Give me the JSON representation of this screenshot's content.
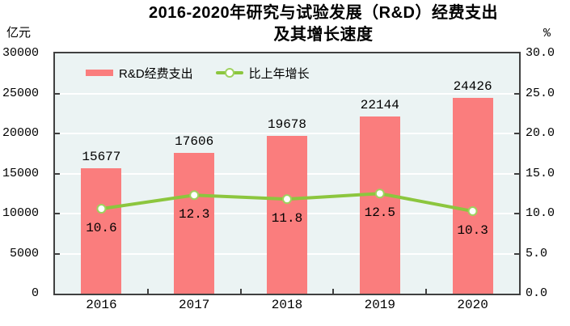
{
  "title": {
    "line1": "2016-2020年研究与试验发展（R&D）经费支出",
    "line2": "及其增长速度"
  },
  "chart_data": {
    "type": "bar+line",
    "title": "2016-2020年研究与试验发展（R&D）经费支出及其增长速度",
    "categories": [
      "2016",
      "2017",
      "2018",
      "2019",
      "2020"
    ],
    "series": [
      {
        "name": "R&D经费支出",
        "type": "bar",
        "axis": "left",
        "values": [
          15677,
          17606,
          19678,
          22144,
          24426
        ],
        "labels": [
          "15677",
          "17606",
          "19678",
          "22144",
          "24426"
        ],
        "color": "#FA7D7D"
      },
      {
        "name": "比上年增长",
        "type": "line",
        "axis": "right",
        "values": [
          10.6,
          12.3,
          11.8,
          12.5,
          10.3
        ],
        "labels": [
          "10.6",
          "12.3",
          "11.8",
          "12.5",
          "10.3"
        ],
        "color": "#8CC63E",
        "marker_fill": "#FFFFFF",
        "marker_stroke": "#9FD25F"
      }
    ],
    "left_axis": {
      "label": "亿元",
      "min": 0,
      "max": 30000,
      "step": 5000,
      "ticks": [
        "0",
        "5000",
        "10000",
        "15000",
        "20000",
        "25000",
        "30000"
      ]
    },
    "right_axis": {
      "label": "%",
      "min": 0,
      "max": 30,
      "step": 5,
      "ticks": [
        "0.0",
        "5.0",
        "10.0",
        "15.0",
        "20.0",
        "25.0",
        "30.0"
      ]
    },
    "grid": true,
    "grid_color": "#FFFFFF",
    "plot_bg": "#EBF3F3",
    "axis_color": "#404040",
    "legend_position": "top-left-inside"
  }
}
